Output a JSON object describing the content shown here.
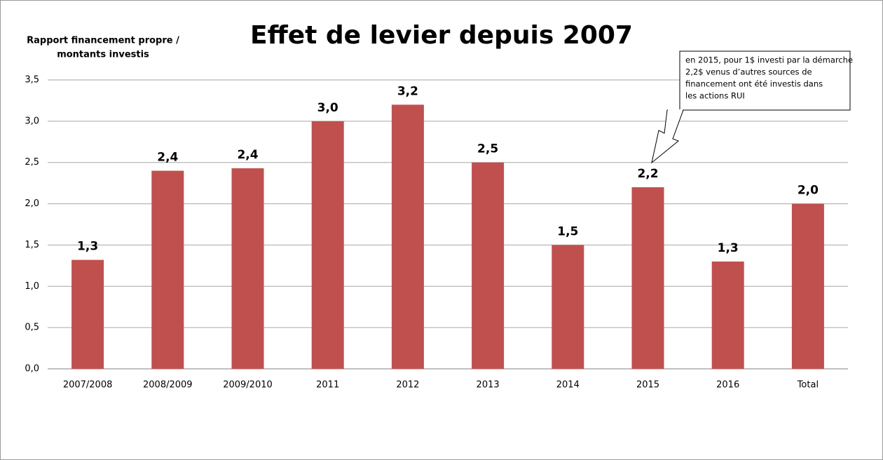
{
  "chart_data": {
    "type": "bar",
    "title": "Effet de levier depuis 2007",
    "ylabel": [
      "Rapport financement propre /",
      "montants investis"
    ],
    "annotation": [
      "en 2015, pour 1$ investi par la démarche",
      "2,2$ venus d’autres sources de",
      "financement ont été investis dans",
      "les actions RUI"
    ],
    "categories": [
      "2007/2008",
      "2008/2009",
      "2009/2010",
      "2011",
      "2012",
      "2013",
      "2014",
      "2015",
      "2016",
      "Total"
    ],
    "values": [
      1.32,
      2.4,
      2.43,
      3.0,
      3.2,
      2.5,
      1.5,
      2.2,
      1.3,
      2.0
    ],
    "value_labels": [
      "1,3",
      "2,4",
      "2,4",
      "3,0",
      "3,2",
      "2,5",
      "1,5",
      "2,2",
      "1,3",
      "2,0"
    ],
    "color": "#c0504d",
    "ylim": [
      0,
      3.5
    ],
    "yticks": [
      {
        "value": 0,
        "label": "0,0"
      },
      {
        "value": 0.5,
        "label": "0,5"
      },
      {
        "value": 1,
        "label": "1,0"
      },
      {
        "value": 1.5,
        "label": "1,5"
      },
      {
        "value": 2,
        "label": "2,0"
      },
      {
        "value": 2.5,
        "label": "2,5"
      },
      {
        "value": 3,
        "label": "3,0"
      },
      {
        "value": 3.5,
        "label": "3,5"
      }
    ],
    "grid": true
  }
}
